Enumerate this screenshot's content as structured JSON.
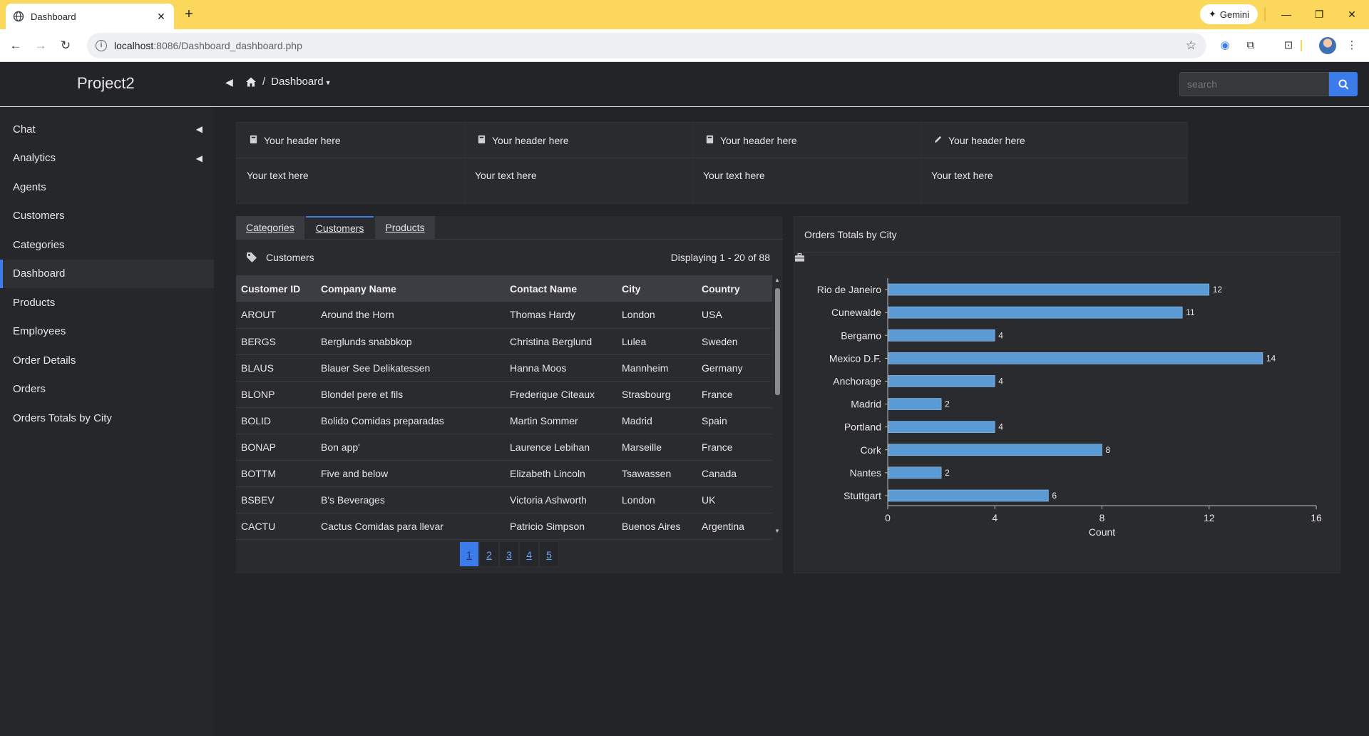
{
  "browser": {
    "tab_title": "Dashboard",
    "url_host": "localhost",
    "url_path": ":8086/Dashboard_dashboard.php",
    "gemini_label": "Gemini"
  },
  "app": {
    "brand": "Project2",
    "breadcrumb_current": "Dashboard",
    "search_placeholder": "search"
  },
  "sidebar": {
    "items": [
      {
        "label": "Chat",
        "has_chevron": true
      },
      {
        "label": "Analytics",
        "has_chevron": true
      },
      {
        "label": "Agents"
      },
      {
        "label": "Customers"
      },
      {
        "label": "Categories"
      },
      {
        "label": "Dashboard",
        "active": true
      },
      {
        "label": "Products"
      },
      {
        "label": "Employees"
      },
      {
        "label": "Order Details"
      },
      {
        "label": "Orders"
      },
      {
        "label": "Orders Totals by City"
      }
    ]
  },
  "cards": [
    {
      "header": "Your header here",
      "text": "Your text here",
      "icon": "book-icon"
    },
    {
      "header": "Your header here",
      "text": "Your text here",
      "icon": "book-icon"
    },
    {
      "header": "Your header here",
      "text": "Your text here",
      "icon": "book-icon"
    },
    {
      "header": "Your header here",
      "text": "Your text here",
      "icon": "pencil-icon"
    }
  ],
  "grid": {
    "tabs": [
      "Categories",
      "Customers",
      "Products"
    ],
    "active_tab": "Customers",
    "title": "Customers",
    "displaying": "Displaying 1 - 20 of 88",
    "columns": [
      "Customer ID",
      "Company Name",
      "Contact Name",
      "City",
      "Country"
    ],
    "rows": [
      [
        "AROUT",
        "Around the Horn",
        "Thomas Hardy",
        "London",
        "USA"
      ],
      [
        "BERGS",
        "Berglunds snabbkop",
        "Christina Berglund",
        "Lulea",
        "Sweden"
      ],
      [
        "BLAUS",
        "Blauer See Delikatessen",
        "Hanna Moos",
        "Mannheim",
        "Germany"
      ],
      [
        "BLONP",
        "Blondel pere et fils",
        "Frederique Citeaux",
        "Strasbourg",
        "France"
      ],
      [
        "BOLID",
        "Bolido Comidas preparadas",
        "Martin Sommer",
        "Madrid",
        "Spain"
      ],
      [
        "BONAP",
        "Bon app'",
        "Laurence Lebihan",
        "Marseille",
        "France"
      ],
      [
        "BOTTM",
        "Five and below",
        "Elizabeth Lincoln",
        "Tsawassen",
        "Canada"
      ],
      [
        "BSBEV",
        "B's Beverages",
        "Victoria Ashworth",
        "London",
        "UK"
      ],
      [
        "CACTU",
        "Cactus Comidas para llevar",
        "Patricio Simpson",
        "Buenos Aires",
        "Argentina"
      ]
    ],
    "pages": [
      "1",
      "2",
      "3",
      "4",
      "5"
    ],
    "current_page": "1"
  },
  "chart_panel": {
    "title": "Orders Totals by City"
  },
  "chart_data": {
    "type": "bar",
    "orientation": "horizontal",
    "categories": [
      "Rio de Janeiro",
      "Cunewalde",
      "Bergamo",
      "Mexico D.F.",
      "Anchorage",
      "Madrid",
      "Portland",
      "Cork",
      "Nantes",
      "Stuttgart"
    ],
    "values": [
      12,
      11,
      4,
      14,
      4,
      2,
      4,
      8,
      2,
      6
    ],
    "xlabel": "Count",
    "ylabel": "",
    "xlim": [
      0,
      16
    ],
    "xticks": [
      "0",
      "4",
      "8",
      "12",
      "16"
    ],
    "bar_color": "#5b9bd5",
    "data_labels": true
  }
}
